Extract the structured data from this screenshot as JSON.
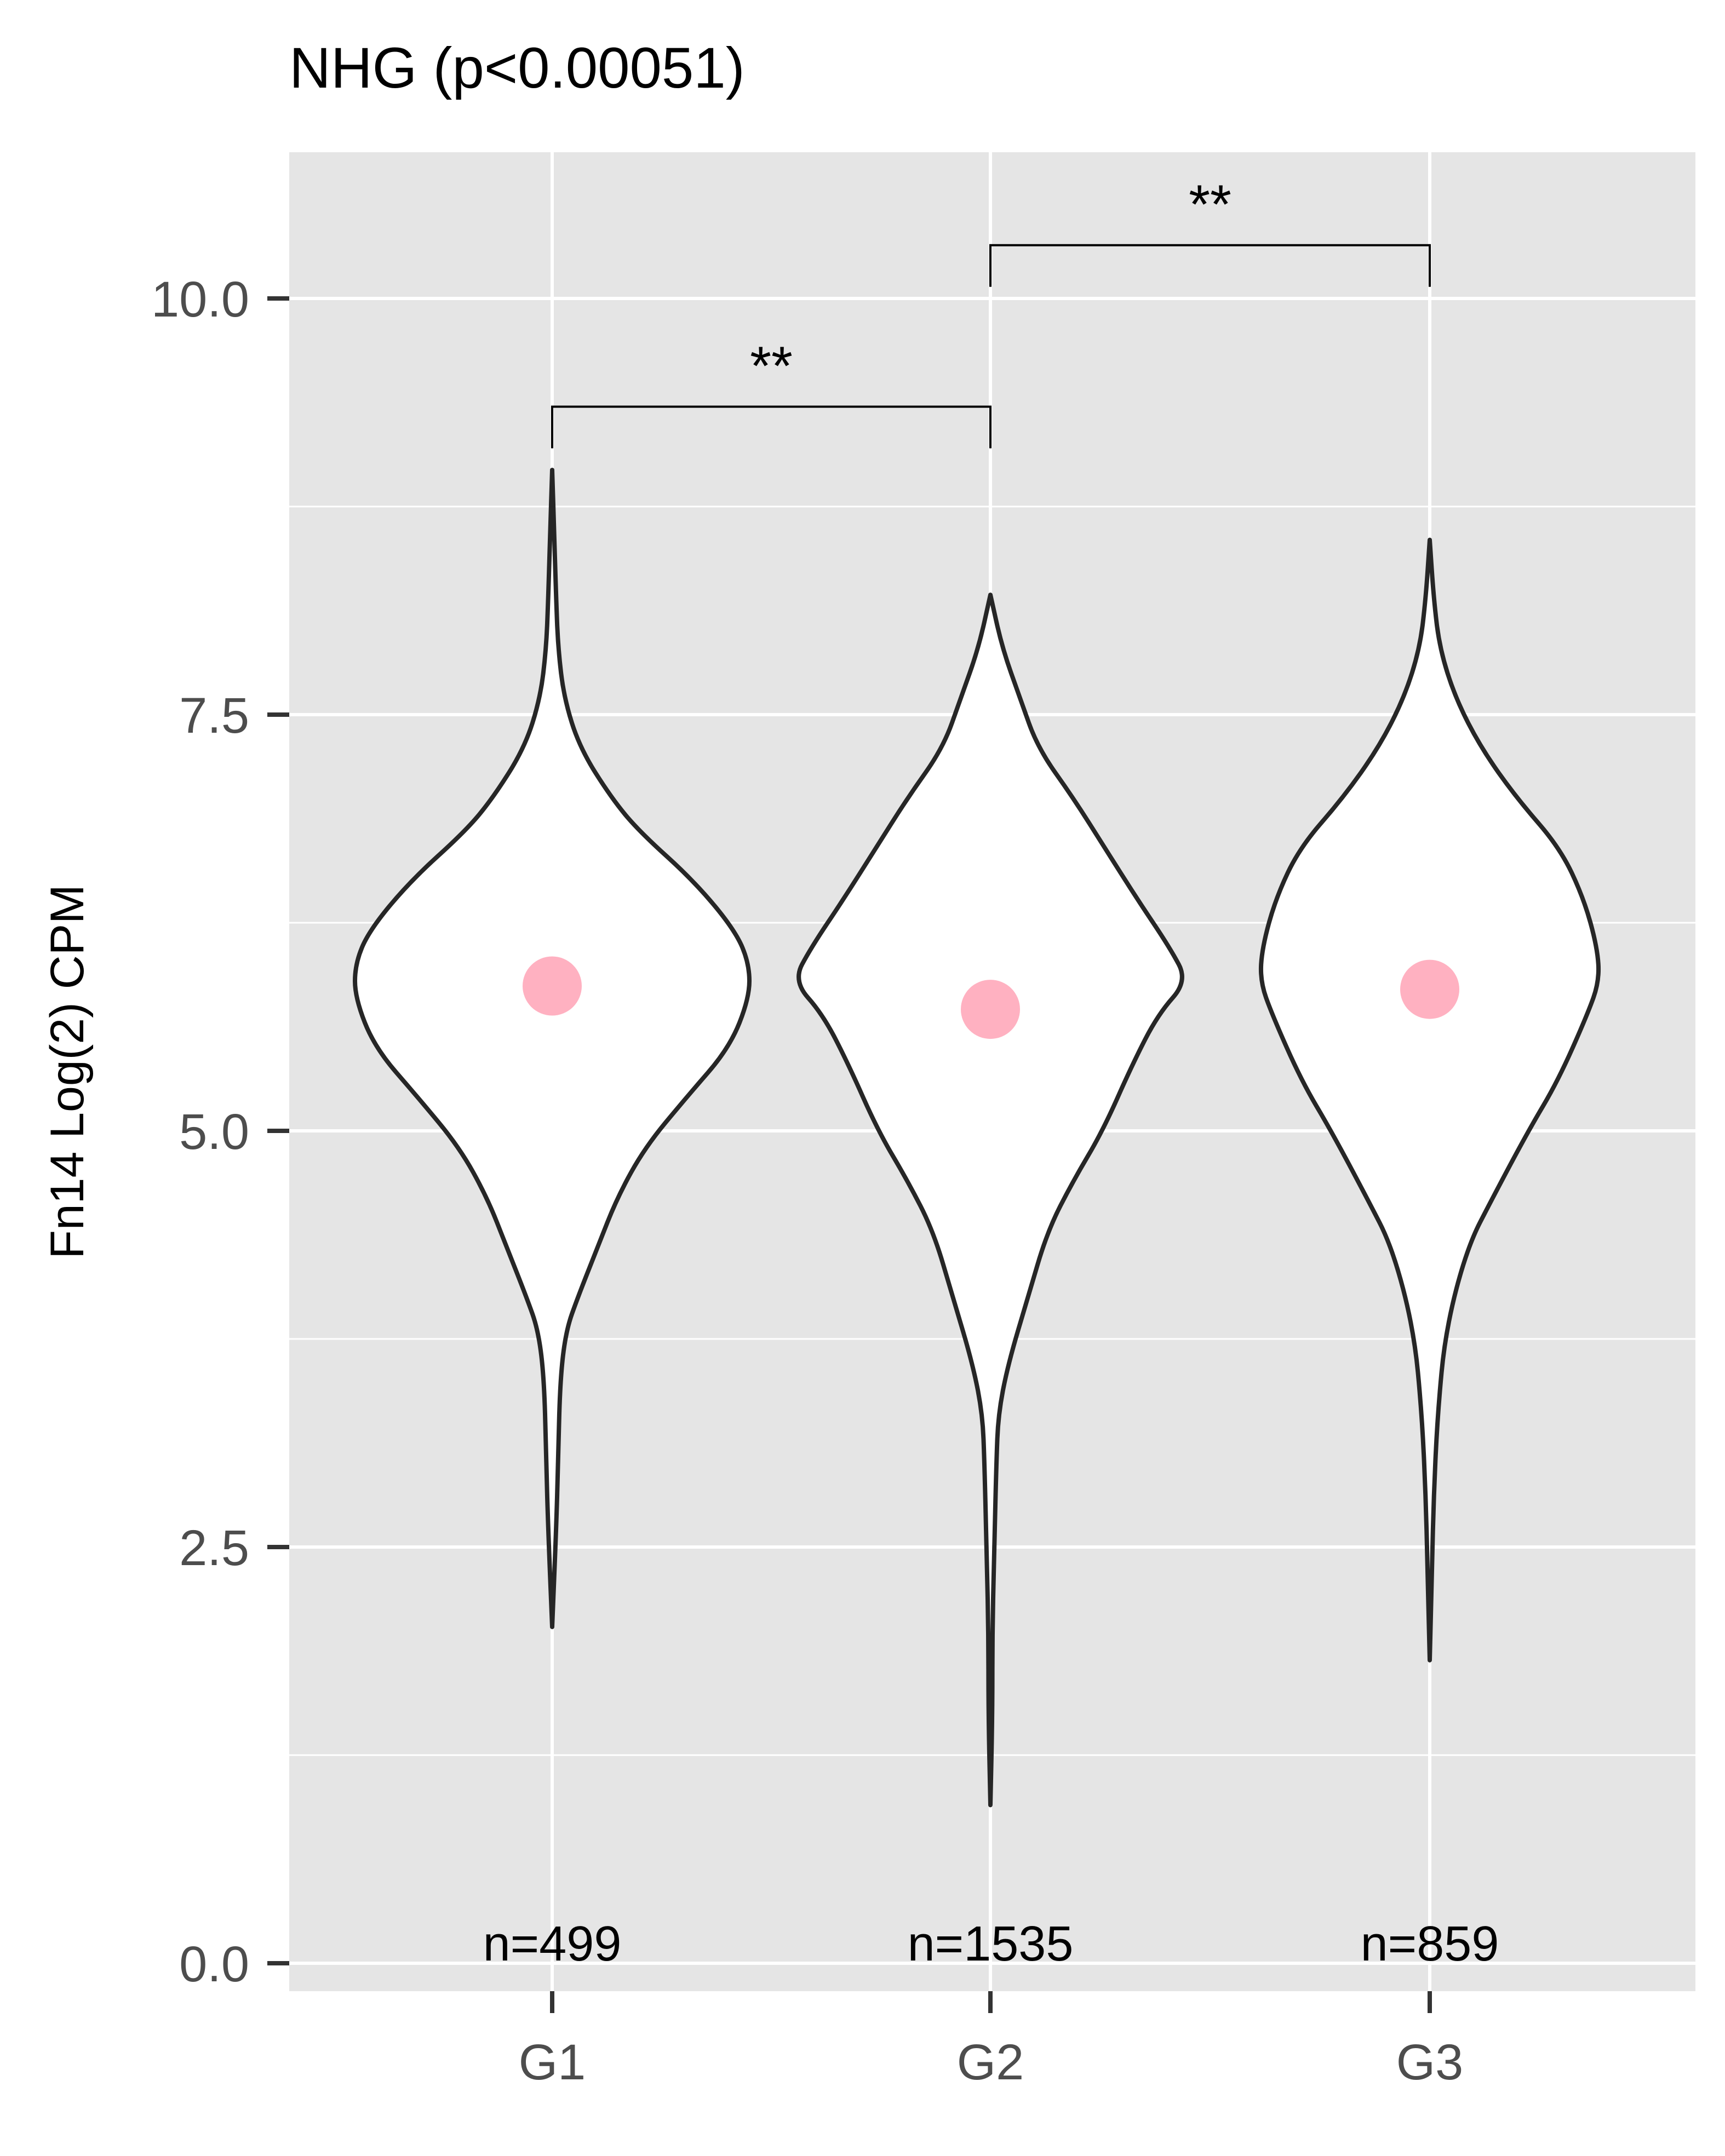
{
  "chart_data": {
    "type": "violin",
    "title": "NHG (p<0.00051)",
    "xlabel": "",
    "ylabel": "Fn14 Log(2) CPM",
    "ylim": [
      -0.45,
      10.8
    ],
    "y_ticks": [
      0.0,
      2.5,
      5.0,
      7.5,
      10.0
    ],
    "y_tick_labels": [
      "0.0",
      "2.5",
      "5.0",
      "7.5",
      "10.0"
    ],
    "y_minor_ticks": [
      1.25,
      3.75,
      6.25,
      8.75
    ],
    "categories": [
      "G1",
      "G2",
      "G3"
    ],
    "grid": true,
    "background_color": "#e5e5e5",
    "grid_color": "#ffffff",
    "violin_fill": "#ffffff",
    "violin_stroke": "#262626",
    "point_color": "#ffb1c1",
    "groups": [
      {
        "name": "G1",
        "n_label": "n=499",
        "median": 5.87,
        "profile": [
          [
            2.02,
            0.0
          ],
          [
            2.6,
            0.02
          ],
          [
            3.0,
            0.03
          ],
          [
            3.5,
            0.04
          ],
          [
            3.8,
            0.07
          ],
          [
            4.0,
            0.13
          ],
          [
            4.3,
            0.23
          ],
          [
            4.6,
            0.33
          ],
          [
            4.9,
            0.47
          ],
          [
            5.2,
            0.68
          ],
          [
            5.5,
            0.9
          ],
          [
            5.8,
            1.0
          ],
          [
            6.0,
            1.0
          ],
          [
            6.2,
            0.93
          ],
          [
            6.5,
            0.72
          ],
          [
            6.8,
            0.44
          ],
          [
            7.0,
            0.3
          ],
          [
            7.3,
            0.14
          ],
          [
            7.6,
            0.06
          ],
          [
            7.9,
            0.03
          ],
          [
            8.2,
            0.02
          ],
          [
            8.6,
            0.01
          ],
          [
            8.97,
            0.0
          ]
        ]
      },
      {
        "name": "G2",
        "n_label": "n=1535",
        "median": 5.73,
        "profile": [
          [
            0.95,
            0.0
          ],
          [
            1.5,
            0.01
          ],
          [
            2.0,
            0.01
          ],
          [
            2.5,
            0.02
          ],
          [
            3.0,
            0.03
          ],
          [
            3.3,
            0.04
          ],
          [
            3.6,
            0.09
          ],
          [
            4.0,
            0.19
          ],
          [
            4.4,
            0.29
          ],
          [
            4.7,
            0.42
          ],
          [
            5.0,
            0.57
          ],
          [
            5.4,
            0.72
          ],
          [
            5.7,
            0.85
          ],
          [
            5.9,
            1.0
          ],
          [
            6.1,
            0.91
          ],
          [
            6.4,
            0.74
          ],
          [
            6.7,
            0.58
          ],
          [
            7.0,
            0.42
          ],
          [
            7.3,
            0.24
          ],
          [
            7.6,
            0.15
          ],
          [
            7.9,
            0.06
          ],
          [
            8.22,
            0.0
          ]
        ]
      },
      {
        "name": "G3",
        "n_label": "n=859",
        "median": 5.85,
        "profile": [
          [
            1.82,
            0.0
          ],
          [
            2.3,
            0.01
          ],
          [
            2.8,
            0.02
          ],
          [
            3.3,
            0.04
          ],
          [
            3.8,
            0.08
          ],
          [
            4.3,
            0.19
          ],
          [
            4.6,
            0.32
          ],
          [
            5.0,
            0.5
          ],
          [
            5.3,
            0.65
          ],
          [
            5.7,
            0.8
          ],
          [
            5.9,
            0.86
          ],
          [
            6.1,
            0.85
          ],
          [
            6.4,
            0.78
          ],
          [
            6.7,
            0.66
          ],
          [
            7.0,
            0.44
          ],
          [
            7.3,
            0.26
          ],
          [
            7.6,
            0.13
          ],
          [
            7.9,
            0.05
          ],
          [
            8.2,
            0.02
          ],
          [
            8.55,
            0.0
          ]
        ]
      }
    ],
    "comparisons": [
      {
        "from": "G1",
        "to": "G2",
        "label": "**",
        "y": 9.35,
        "tip_y": 9.1
      },
      {
        "from": "G2",
        "to": "G3",
        "label": "**",
        "y": 10.32,
        "tip_y": 10.07
      }
    ]
  }
}
